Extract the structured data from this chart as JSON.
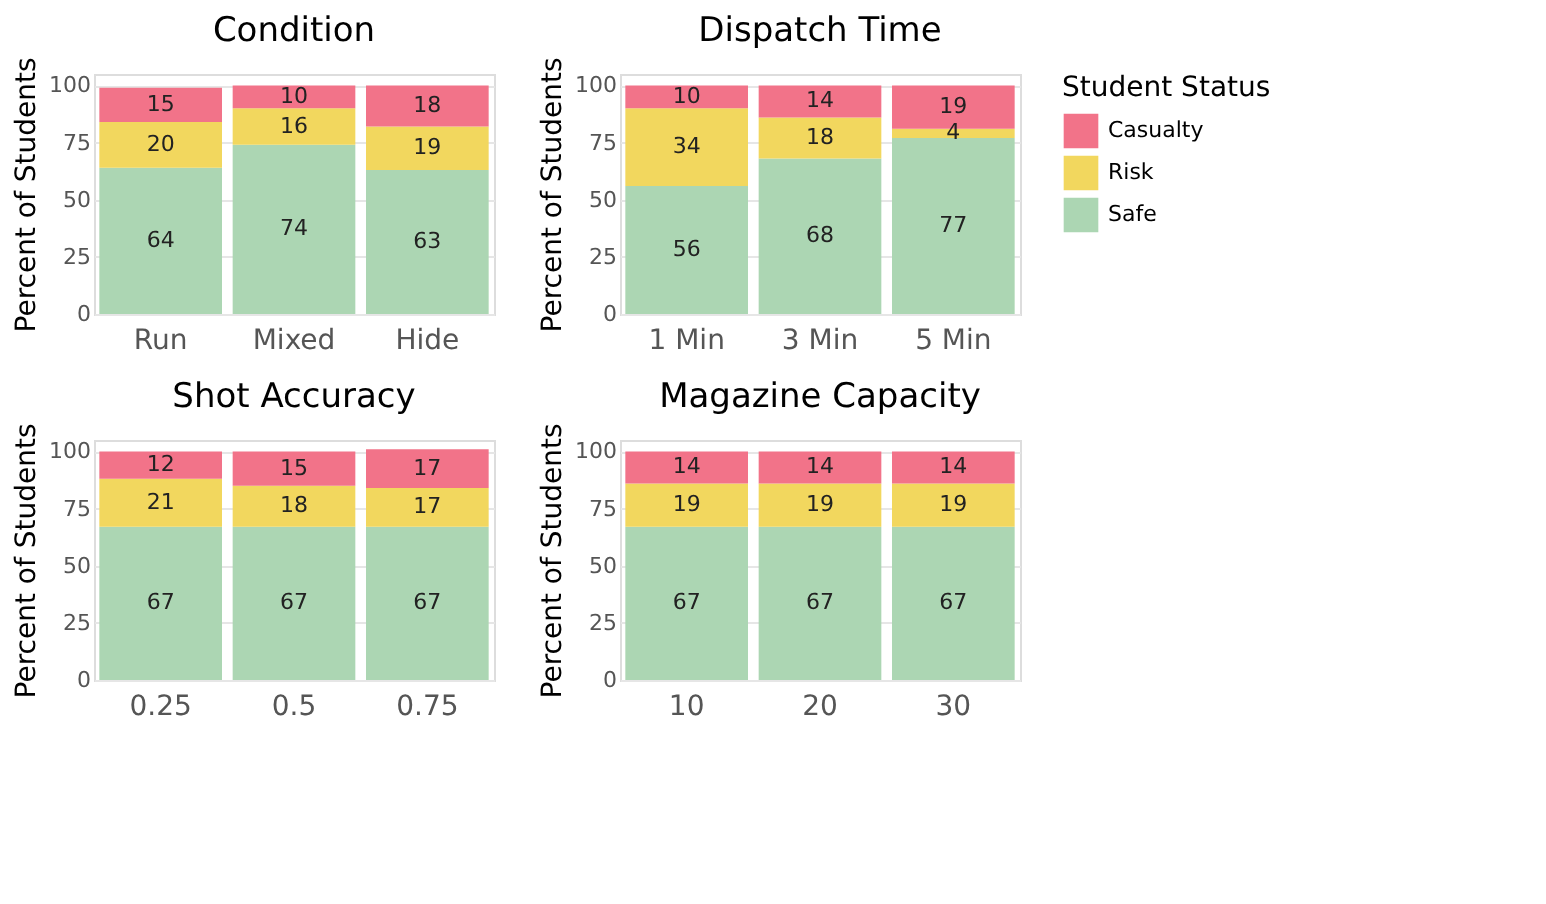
{
  "chart_data": [
    {
      "type": "bar",
      "title": "Condition",
      "ylabel": "Percent of Students",
      "categories": [
        "Run",
        "Mixed",
        "Hide"
      ],
      "stacked": true,
      "ylim": [
        0,
        105
      ],
      "yticks": [
        0,
        25,
        50,
        75,
        100
      ],
      "grid": "y",
      "data_labels": true,
      "legend": "right",
      "legend_title": "Student Status",
      "series": [
        {
          "name": "Safe",
          "color": "#acd6b3",
          "values": [
            64,
            74,
            63
          ]
        },
        {
          "name": "Risk",
          "color": "#f2d75e",
          "values": [
            20,
            16,
            19
          ]
        },
        {
          "name": "Casualty",
          "color": "#f27389",
          "values": [
            15,
            10,
            18
          ]
        }
      ]
    },
    {
      "type": "bar",
      "title": "Dispatch Time",
      "ylabel": "Percent of Students",
      "categories": [
        "1 Min",
        "3 Min",
        "5 Min"
      ],
      "stacked": true,
      "ylim": [
        0,
        105
      ],
      "yticks": [
        0,
        25,
        50,
        75,
        100
      ],
      "grid": "y",
      "data_labels": true,
      "series": [
        {
          "name": "Safe",
          "color": "#acd6b3",
          "values": [
            56,
            68,
            77
          ]
        },
        {
          "name": "Risk",
          "color": "#f2d75e",
          "values": [
            34,
            18,
            4
          ]
        },
        {
          "name": "Casualty",
          "color": "#f27389",
          "values": [
            10,
            14,
            19
          ]
        }
      ]
    },
    {
      "type": "bar",
      "title": "Shot Accuracy",
      "ylabel": "Percent of Students",
      "categories": [
        "0.25",
        "0.5",
        "0.75"
      ],
      "stacked": true,
      "ylim": [
        0,
        105
      ],
      "yticks": [
        0,
        25,
        50,
        75,
        100
      ],
      "grid": "y",
      "data_labels": true,
      "series": [
        {
          "name": "Safe",
          "color": "#acd6b3",
          "values": [
            67,
            67,
            67
          ]
        },
        {
          "name": "Risk",
          "color": "#f2d75e",
          "values": [
            21,
            18,
            17
          ]
        },
        {
          "name": "Casualty",
          "color": "#f27389",
          "values": [
            12,
            15,
            17
          ]
        }
      ]
    },
    {
      "type": "bar",
      "title": "Magazine Capacity",
      "ylabel": "Percent of Students",
      "categories": [
        "10",
        "20",
        "30"
      ],
      "stacked": true,
      "ylim": [
        0,
        105
      ],
      "yticks": [
        0,
        25,
        50,
        75,
        100
      ],
      "grid": "y",
      "data_labels": true,
      "series": [
        {
          "name": "Safe",
          "color": "#acd6b3",
          "values": [
            67,
            67,
            67
          ]
        },
        {
          "name": "Risk",
          "color": "#f2d75e",
          "values": [
            19,
            19,
            19
          ]
        },
        {
          "name": "Casualty",
          "color": "#f27389",
          "values": [
            14,
            14,
            14
          ]
        }
      ]
    }
  ]
}
